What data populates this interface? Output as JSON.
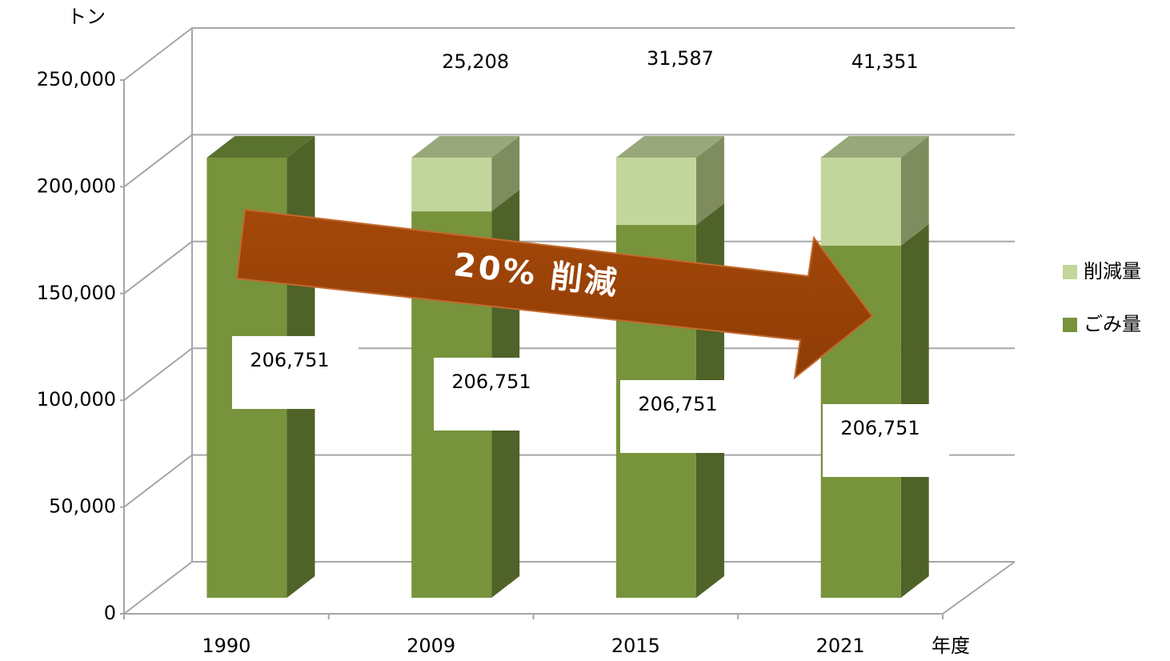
{
  "chart_data": {
    "type": "bar3d_stacked",
    "y_unit_label": "トン",
    "x_label": "年度",
    "categories": [
      "1990",
      "2009",
      "2015",
      "2021"
    ],
    "series": [
      {
        "name": "ごみ量",
        "color": "#77933c",
        "side_color": "#4f6228",
        "top_color": "#5a7230",
        "values": [
          206751,
          181543,
          175164,
          165400
        ]
      },
      {
        "name": "削減量",
        "color": "#c3d69b",
        "side_color": "#7f8c5e",
        "top_color": "#98a87a",
        "values": [
          null,
          25208,
          31587,
          41351
        ],
        "value_labels": [
          null,
          "25,208",
          "31,587",
          "41,351"
        ]
      }
    ],
    "annotations": [
      "206,751",
      "206,751",
      "206,751",
      "206,751"
    ],
    "arrow_text": "20% 削減",
    "ylim": [
      0,
      250000
    ],
    "yticks": [
      {
        "value": 0,
        "label": "0"
      },
      {
        "value": 50000,
        "label": "50,000"
      },
      {
        "value": 100000,
        "label": "100,000"
      },
      {
        "value": 150000,
        "label": "150,000"
      },
      {
        "value": 200000,
        "label": "200,000"
      },
      {
        "value": 250000,
        "label": "250,000"
      }
    ],
    "grid": true,
    "legend": "right"
  }
}
